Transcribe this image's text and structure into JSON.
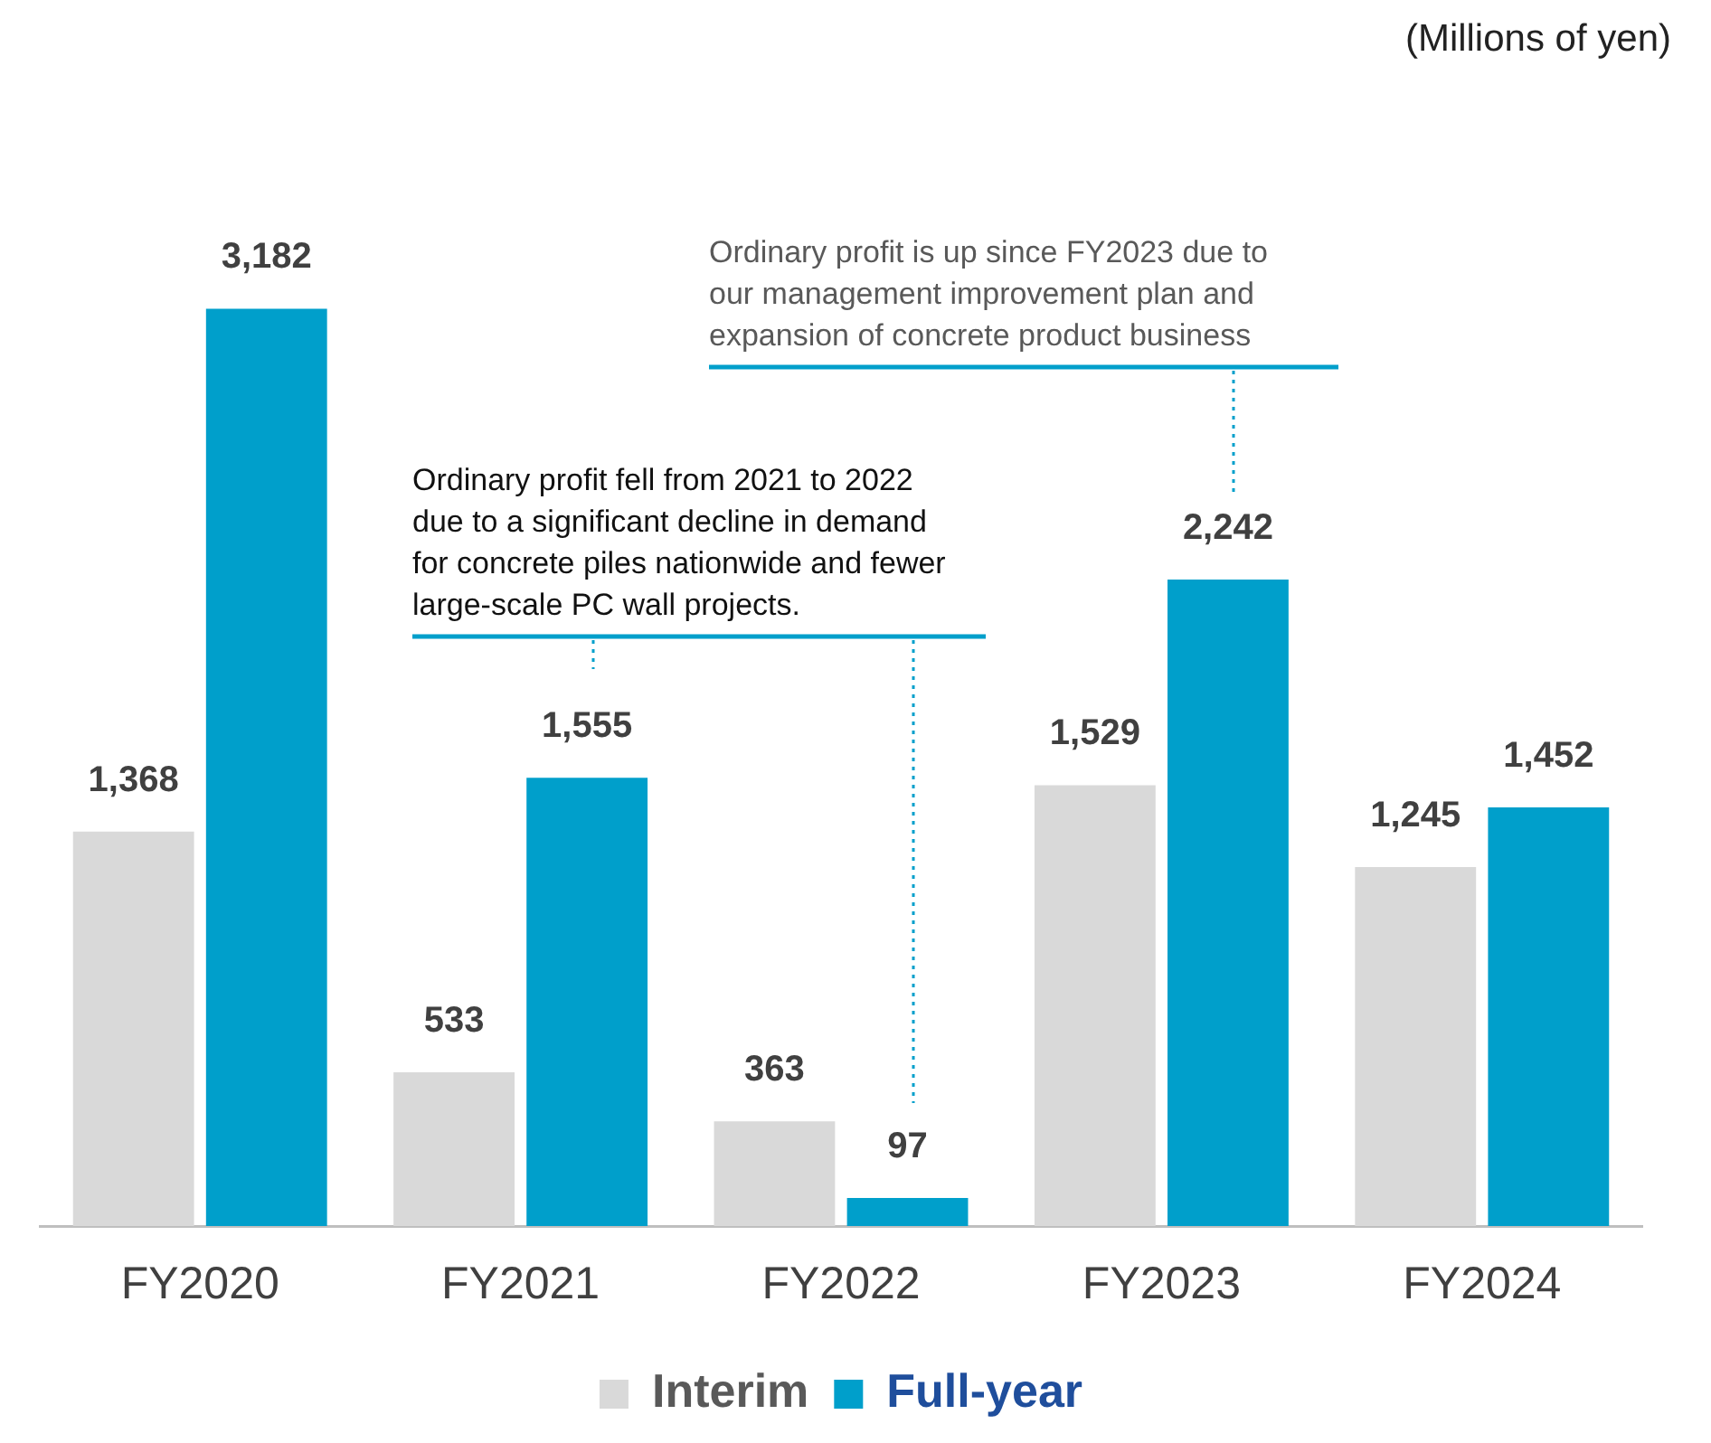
{
  "chart_data": {
    "type": "bar",
    "categories": [
      "FY2020",
      "FY2021",
      "FY2022",
      "FY2023",
      "FY2024"
    ],
    "series": [
      {
        "name": "Interim",
        "color": "#d9d9d9",
        "values": [
          1368,
          533,
          363,
          1529,
          1245
        ],
        "value_labels": [
          "1,368",
          "533",
          "363",
          "1,529",
          "1,245"
        ]
      },
      {
        "name": "Full-year",
        "color": "#009fcb",
        "values": [
          3182,
          1555,
          97,
          2242,
          1452
        ],
        "value_labels": [
          "3,182",
          "1,555",
          "97",
          "2,242",
          "1,452"
        ]
      }
    ],
    "legend": "bottom",
    "grid": false,
    "annotations": [
      "(Millions of yen)",
      "Ordinary profit fell from 2021 to 2022 due to a significant decline in demand for concrete piles nationwide and fewer large-scale PC wall projects.",
      "Ordinary profit is up since FY2023 due to our management improvement plan and expansion of concrete product business"
    ]
  }
}
